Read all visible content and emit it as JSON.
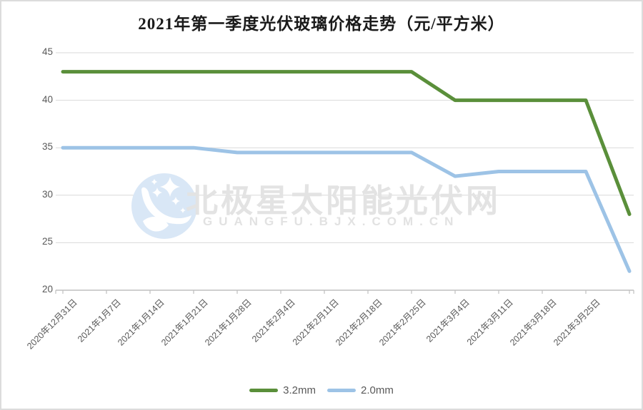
{
  "window": {
    "background": "#ffffff",
    "border_color": "#dcdcdc"
  },
  "watermark": {
    "logo_icon": "moon-stars-logo",
    "text_cn": "北极星太阳能光伏网",
    "text_en": "GUANGFU.BJX.COM.CN",
    "text_color": "#e3e3e3",
    "logo_color": "#d9e7f6"
  },
  "chart_data": {
    "type": "line",
    "title": "2021年第一季度光伏玻璃价格走势（元/平方米）",
    "xlabel": "",
    "ylabel": "",
    "categories": [
      "2020年12月31日",
      "2021年1月7日",
      "2021年1月14日",
      "2021年1月21日",
      "2021年1月28日",
      "2021年2月4日",
      "2021年2月11日",
      "2021年2月18日",
      "2021年2月25日",
      "2021年3月4日",
      "2021年3月11日",
      "2021年3月18日",
      "2021年3月25日",
      ""
    ],
    "series": [
      {
        "name": "3.2mm",
        "color": "#5a8f3a",
        "values": [
          43,
          43,
          43,
          43,
          43,
          43,
          43,
          43,
          43,
          40,
          40,
          40,
          40,
          28
        ]
      },
      {
        "name": "2.0mm",
        "color": "#9dc3e6",
        "values": [
          35,
          35,
          35,
          35,
          34.5,
          34.5,
          34.5,
          34.5,
          34.5,
          32,
          32.5,
          32.5,
          32.5,
          22
        ]
      }
    ],
    "ylim": [
      20,
      45
    ],
    "yticks": [
      20,
      25,
      30,
      35,
      40,
      45
    ],
    "grid": "horizontal",
    "grid_color": "#d9d9d9",
    "axis_line_color": "#bfbfbf",
    "axis_label_color": "#595959",
    "legend_position": "bottom"
  }
}
